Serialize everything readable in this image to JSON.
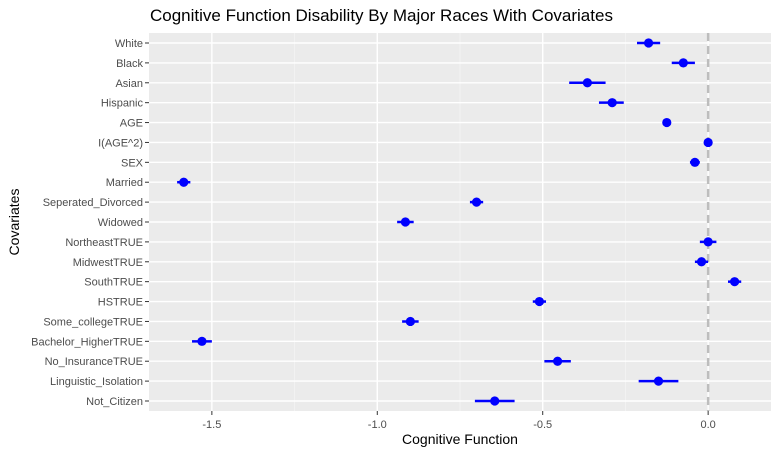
{
  "chart_data": {
    "type": "scatter",
    "title": "Cognitive Function Disability By Major Races With Covariates",
    "xlabel": "Cognitive Function",
    "ylabel": "Covariates",
    "xlim": [
      -1.69,
      0.19
    ],
    "x_ticks": [
      -1.5,
      -1.0,
      -0.5,
      0.0
    ],
    "x_tick_labels": [
      "-1.5",
      "-1.0",
      "-0.5",
      "0.0"
    ],
    "reference_line_x": 0.0,
    "grid": true,
    "categories": [
      "White",
      "Black",
      "Asian",
      "Hispanic",
      "AGE",
      "I(AGE^2)",
      "SEX",
      "Married",
      "Seperated_Divorced",
      "Widowed",
      "NortheastTRUE",
      "MidwestTRUE",
      "SouthTRUE",
      "HSTRUE",
      "Some_collegeTRUE",
      "Bachelor_HigherTRUE",
      "No_InsuranceTRUE",
      "Linguistic_Isolation",
      "Not_Citizen"
    ],
    "series": [
      {
        "estimate": [
          -0.18,
          -0.075,
          -0.365,
          -0.29,
          -0.125,
          0.0,
          -0.04,
          -1.585,
          -0.7,
          -0.915,
          0.0,
          -0.02,
          0.08,
          -0.51,
          -0.9,
          -1.53,
          -0.455,
          -0.15,
          -0.645
        ],
        "lower": [
          -0.215,
          -0.11,
          -0.42,
          -0.33,
          -0.13,
          -0.002,
          -0.055,
          -1.605,
          -0.72,
          -0.94,
          -0.025,
          -0.04,
          0.06,
          -0.53,
          -0.925,
          -1.56,
          -0.495,
          -0.21,
          -0.705
        ],
        "upper": [
          -0.145,
          -0.04,
          -0.31,
          -0.255,
          -0.12,
          0.002,
          -0.025,
          -1.565,
          -0.68,
          -0.89,
          0.025,
          0.0,
          0.1,
          -0.49,
          -0.875,
          -1.5,
          -0.415,
          -0.09,
          -0.585
        ]
      }
    ],
    "colors": {
      "point": "#0000ff",
      "panel_background": "#ebebeb",
      "grid_major": "#ffffff",
      "grid_minor": "#f5f5f5",
      "reference_line": "#bdbdbd"
    }
  }
}
